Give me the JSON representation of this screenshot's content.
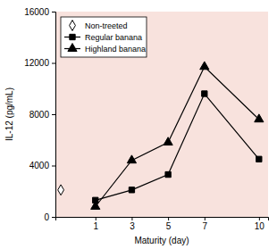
{
  "chart_data": {
    "type": "line",
    "x_label": "Maturity (day)",
    "y_label": "IL-12 (pg/mL)",
    "xlim": [
      -1.2,
      10.5
    ],
    "xticks": [
      1,
      3,
      5,
      7,
      10
    ],
    "ylim": [
      0,
      16000
    ],
    "yticks": [
      0,
      4000,
      8000,
      12000,
      16000
    ],
    "grid": false,
    "legend": "upper left",
    "series": [
      {
        "name": "Non-treeted",
        "color": "#000000",
        "marker": "diamond",
        "line_style": "none",
        "x": [
          -0.9
        ],
        "values": [
          2100
        ]
      },
      {
        "name": "Regular banana",
        "color": "#000000",
        "marker": "square",
        "line_style": "solid",
        "x": [
          1,
          3,
          5,
          7,
          10
        ],
        "values": [
          1300,
          2100,
          3300,
          9600,
          4500
        ]
      },
      {
        "name": "Highland banana",
        "color": "#000000",
        "marker": "triangle",
        "line_style": "solid",
        "x": [
          1,
          3,
          5,
          7,
          10
        ],
        "values": [
          800,
          4400,
          5800,
          11700,
          7600
        ]
      }
    ]
  }
}
